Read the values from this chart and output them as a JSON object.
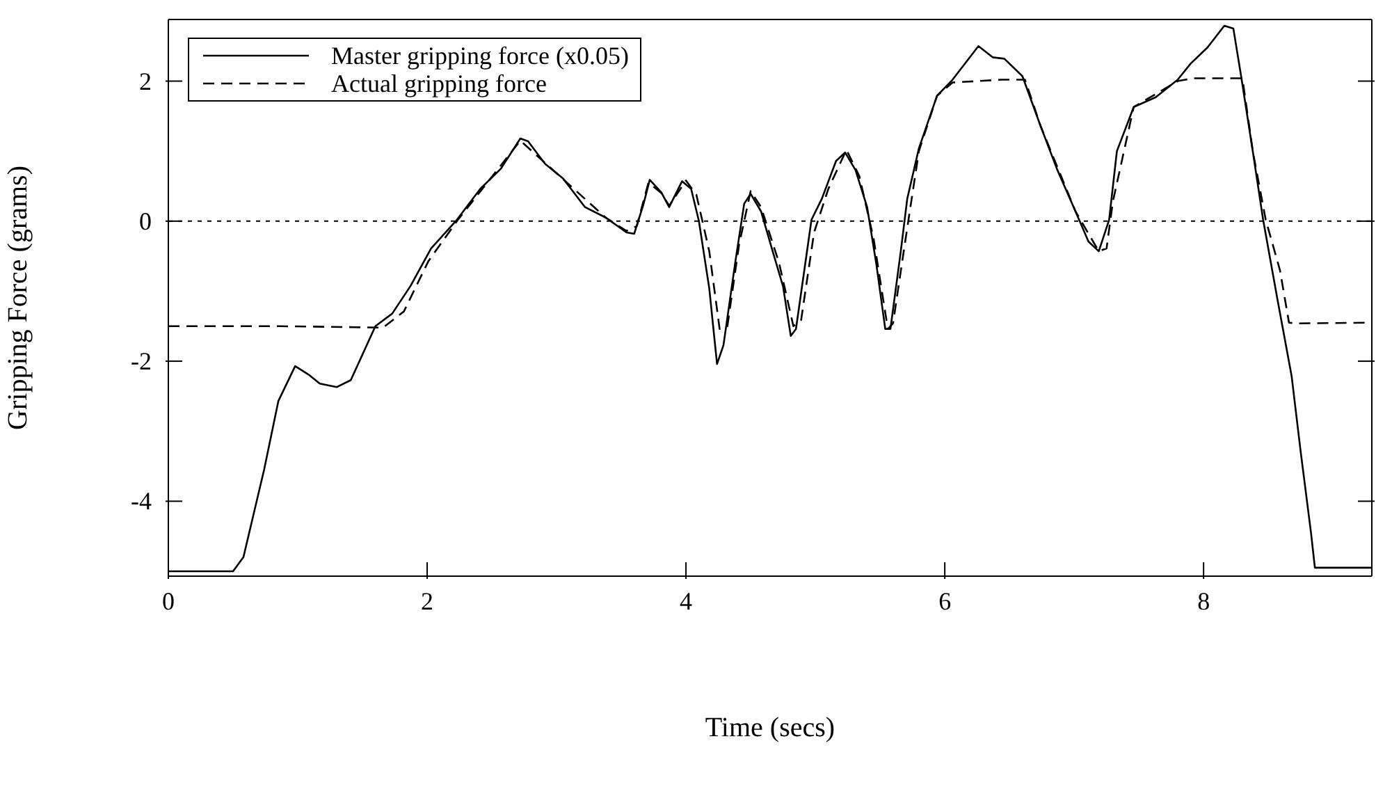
{
  "chart_data": {
    "type": "line",
    "xlabel": "Time (secs)",
    "ylabel": "Gripping Force (grams)",
    "xlim": [
      0,
      9.3
    ],
    "ylim": [
      -5.07,
      2.88
    ],
    "xticks": [
      0,
      2,
      4,
      6,
      8
    ],
    "yticks": [
      -4,
      -2,
      0,
      2
    ],
    "legend": "top left",
    "marker": "none",
    "ref_lines": [
      {
        "axis": "y",
        "value": 0,
        "line_style": "dotted"
      }
    ],
    "series": [
      {
        "name": "Master gripping force (x0.05)",
        "color": "#000000",
        "line_style": "solid",
        "x": [
          0,
          0.5,
          0.58,
          0.74,
          0.85,
          0.98,
          1.09,
          1.17,
          1.3,
          1.41,
          1.6,
          1.73,
          1.87,
          2.03,
          2.23,
          2.41,
          2.57,
          2.72,
          2.78,
          2.91,
          3.05,
          3.22,
          3.38,
          3.54,
          3.6,
          3.67,
          3.72,
          3.81,
          3.87,
          3.97,
          4.04,
          4.1,
          4.18,
          4.24,
          4.29,
          4.38,
          4.45,
          4.5,
          4.58,
          4.67,
          4.75,
          4.81,
          4.85,
          4.97,
          5.05,
          5.16,
          5.23,
          5.31,
          5.4,
          5.47,
          5.54,
          5.58,
          5.66,
          5.71,
          5.8,
          5.94,
          6.06,
          6.26,
          6.37,
          6.46,
          6.6,
          6.74,
          6.87,
          7.01,
          7.11,
          7.19,
          7.27,
          7.33,
          7.46,
          7.63,
          7.8,
          7.9,
          8.03,
          8.16,
          8.23,
          8.29,
          8.38,
          8.46,
          8.57,
          8.68,
          8.75,
          8.83,
          8.86,
          9.02,
          9.3
        ],
        "values": [
          -5.0,
          -5.0,
          -4.8,
          -3.55,
          -2.57,
          -2.07,
          -2.2,
          -2.32,
          -2.37,
          -2.27,
          -1.5,
          -1.32,
          -0.93,
          -0.39,
          0.02,
          0.46,
          0.75,
          1.18,
          1.14,
          0.82,
          0.61,
          0.2,
          0.05,
          -0.16,
          -0.18,
          0.23,
          0.59,
          0.41,
          0.2,
          0.57,
          0.46,
          0,
          -0.96,
          -2.04,
          -1.77,
          -0.6,
          0.25,
          0.39,
          0.14,
          -0.43,
          -0.93,
          -1.64,
          -1.54,
          0.02,
          0.32,
          0.86,
          0.98,
          0.73,
          0.2,
          -0.6,
          -1.54,
          -1.54,
          -0.43,
          0.32,
          1.04,
          1.79,
          2.02,
          2.5,
          2.34,
          2.32,
          2.07,
          1.36,
          0.73,
          0.14,
          -0.29,
          -0.43,
          0.02,
          1.0,
          1.63,
          1.77,
          2.02,
          2.25,
          2.48,
          2.79,
          2.75,
          2.07,
          1.0,
          0.02,
          -1.11,
          -2.21,
          -3.29,
          -4.45,
          -4.95,
          -4.95,
          -4.95
        ]
      },
      {
        "name": "Actual gripping force",
        "color": "#000000",
        "line_style": "dashed",
        "x": [
          0,
          0.85,
          1.66,
          1.82,
          2.01,
          2.23,
          2.72,
          3.05,
          3.38,
          3.54,
          3.62,
          3.71,
          3.81,
          3.87,
          4.0,
          4.08,
          4.18,
          4.26,
          4.32,
          4.41,
          4.5,
          4.58,
          4.72,
          4.83,
          4.89,
          4.99,
          5.1,
          5.24,
          5.34,
          5.45,
          5.56,
          5.6,
          5.69,
          5.8,
          5.94,
          6.06,
          6.44,
          6.62,
          6.74,
          7.01,
          7.19,
          7.25,
          7.3,
          7.46,
          7.8,
          7.92,
          8.3,
          8.38,
          8.48,
          8.59,
          8.66,
          8.72,
          9.3
        ],
        "values": [
          -1.5,
          -1.5,
          -1.52,
          -1.29,
          -0.57,
          0,
          1.15,
          0.6,
          0.05,
          -0.14,
          -0.07,
          0.55,
          0.4,
          0.22,
          0.58,
          0.38,
          -0.43,
          -1.54,
          -1.5,
          -0.34,
          0.43,
          0.2,
          -0.6,
          -1.5,
          -1.41,
          -0.16,
          0.46,
          1.02,
          0.64,
          -0.25,
          -1.54,
          -1.46,
          -0.34,
          1.0,
          1.79,
          1.98,
          2.02,
          2.02,
          1.36,
          0.14,
          -0.43,
          -0.39,
          0.29,
          1.63,
          2.0,
          2.04,
          2.04,
          1.0,
          0.02,
          -0.7,
          -1.45,
          -1.46,
          -1.45
        ]
      }
    ]
  }
}
